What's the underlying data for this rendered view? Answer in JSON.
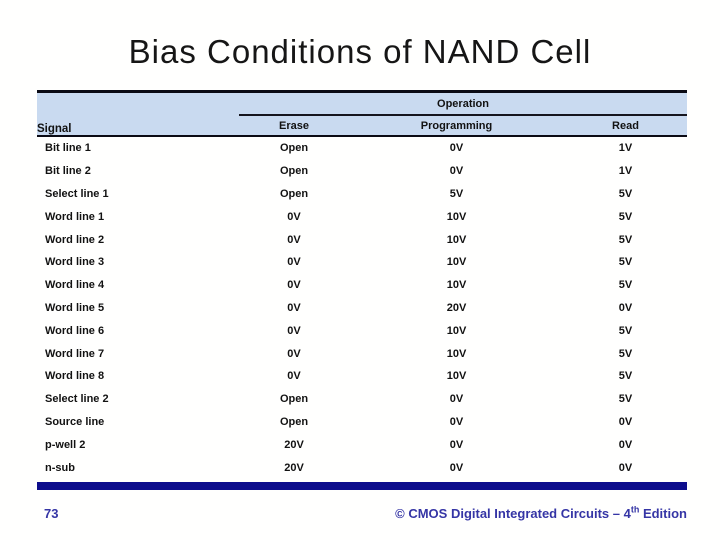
{
  "slide": {
    "title": "Bias Conditions of NAND Cell"
  },
  "table": {
    "signal_header": "Signal",
    "operation_header": "Operation",
    "columns": [
      "Erase",
      "Programming",
      "Read"
    ],
    "rows": [
      {
        "signal": "Bit line 1",
        "erase": "Open",
        "programming": "0V",
        "read": "1V"
      },
      {
        "signal": "Bit line 2",
        "erase": "Open",
        "programming": "0V",
        "read": "1V"
      },
      {
        "signal": "Select line 1",
        "erase": "Open",
        "programming": "5V",
        "read": "5V"
      },
      {
        "signal": "Word line 1",
        "erase": "0V",
        "programming": "10V",
        "read": "5V"
      },
      {
        "signal": "Word line 2",
        "erase": "0V",
        "programming": "10V",
        "read": "5V"
      },
      {
        "signal": "Word line 3",
        "erase": "0V",
        "programming": "10V",
        "read": "5V"
      },
      {
        "signal": "Word line 4",
        "erase": "0V",
        "programming": "10V",
        "read": "5V"
      },
      {
        "signal": "Word line 5",
        "erase": "0V",
        "programming": "20V",
        "read": "0V"
      },
      {
        "signal": "Word line 6",
        "erase": "0V",
        "programming": "10V",
        "read": "5V"
      },
      {
        "signal": "Word line 7",
        "erase": "0V",
        "programming": "10V",
        "read": "5V"
      },
      {
        "signal": "Word line 8",
        "erase": "0V",
        "programming": "10V",
        "read": "5V"
      },
      {
        "signal": "Select line 2",
        "erase": "Open",
        "programming": "0V",
        "read": "5V"
      },
      {
        "signal": "Source line",
        "erase": "Open",
        "programming": "0V",
        "read": "0V"
      },
      {
        "signal": "p-well 2",
        "erase": "20V",
        "programming": "0V",
        "read": "0V"
      },
      {
        "signal": "n-sub",
        "erase": "20V",
        "programming": "0V",
        "read": "0V"
      }
    ]
  },
  "footer": {
    "page_number": "73",
    "copyright_prefix": "© CMOS Digital Integrated Circuits – 4",
    "copyright_superscript": "th",
    "copyright_suffix": " Edition"
  },
  "colors": {
    "header_background": "#c9daf0",
    "accent_bar": "#0d0d8c",
    "footer_text": "#3535a5"
  }
}
